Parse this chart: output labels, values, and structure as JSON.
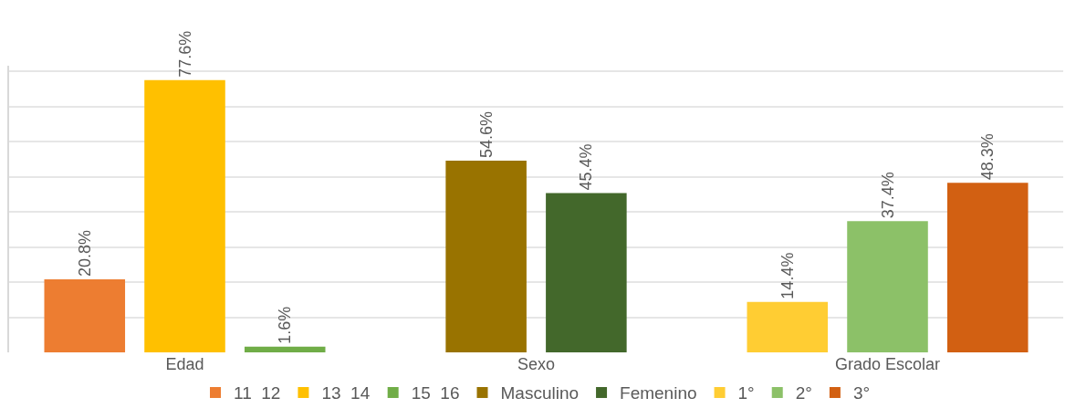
{
  "chart_data": {
    "type": "bar",
    "categories": [
      "Edad",
      "Sexo",
      "Grado Escolar"
    ],
    "series": [
      {
        "name": "11  12",
        "color": "#ed7d31",
        "values": [
          20.8,
          null,
          null
        ],
        "value_labels": [
          "20.8%",
          null,
          null
        ]
      },
      {
        "name": "13  14",
        "color": "#ffc000",
        "values": [
          77.6,
          null,
          null
        ],
        "value_labels": [
          "77.6%",
          null,
          null
        ]
      },
      {
        "name": "15  16",
        "color": "#70ad47",
        "values": [
          1.6,
          null,
          null
        ],
        "value_labels": [
          "1.6%",
          null,
          null
        ]
      },
      {
        "name": "Masculino",
        "color": "#997300",
        "values": [
          null,
          54.6,
          null
        ],
        "value_labels": [
          null,
          "54.6%",
          null
        ]
      },
      {
        "name": "Femenino",
        "color": "#43682b",
        "values": [
          null,
          45.4,
          null
        ],
        "value_labels": [
          null,
          "45.4%",
          null
        ]
      },
      {
        "name": "1°",
        "color": "#ffcd33",
        "values": [
          null,
          null,
          14.4
        ],
        "value_labels": [
          null,
          null,
          "14.4%"
        ]
      },
      {
        "name": "2°",
        "color": "#8cc168",
        "values": [
          null,
          null,
          37.4
        ],
        "value_labels": [
          null,
          null,
          "37.4%"
        ]
      },
      {
        "name": "3°",
        "color": "#d26012",
        "values": [
          null,
          null,
          48.3
        ],
        "value_labels": [
          null,
          null,
          "48.3%"
        ]
      }
    ],
    "tick_labels": "x",
    "grid": "y",
    "legend": "bottom"
  }
}
